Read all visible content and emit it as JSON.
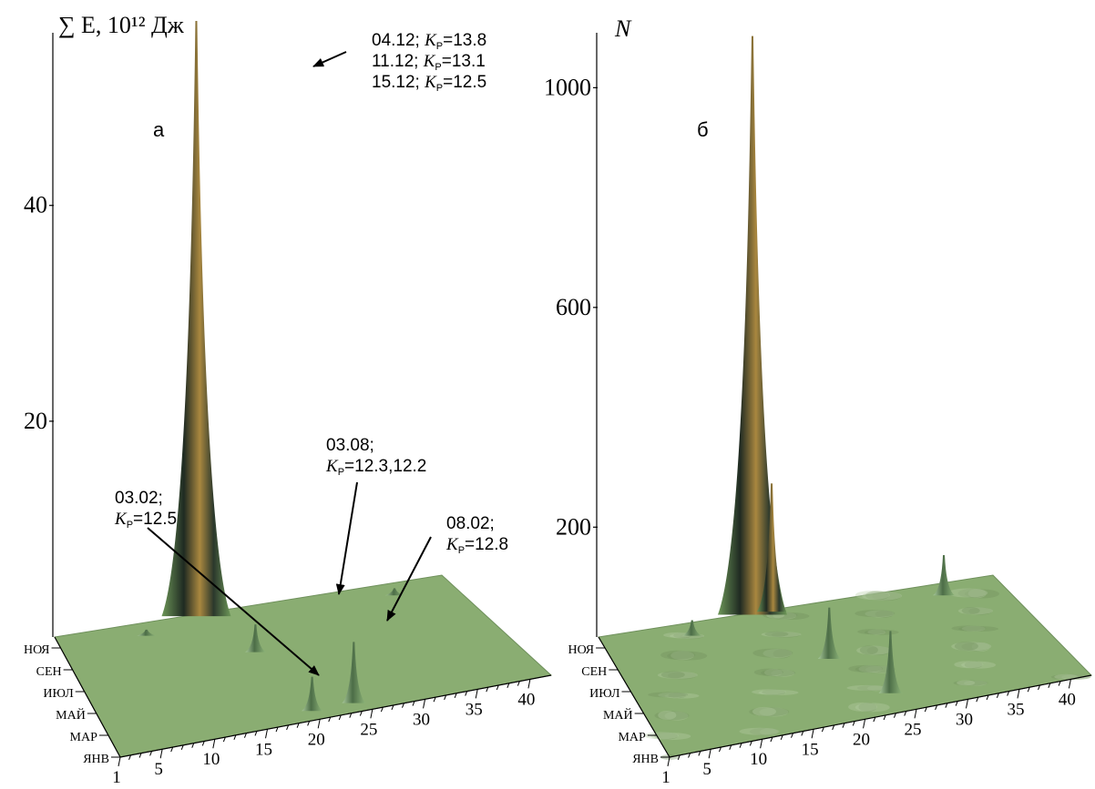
{
  "chart_data": [
    {
      "type": "surface",
      "panel_label": "а",
      "zlabel": "∑ E, 10¹² Дж",
      "zlim": [
        0,
        56
      ],
      "z_ticks": [
        "20",
        "40"
      ],
      "x_ticks": [
        "1",
        "5",
        "10",
        "15",
        "20",
        "25",
        "30",
        "35",
        "40"
      ],
      "y_ticks": [
        "ЯНВ",
        "МАР",
        "МАЙ",
        "ИЮЛ",
        "СЕН",
        "НОЯ"
      ],
      "series": [
        {
          "peaks": [
            {
              "x": 16,
              "month": "ДЕК",
              "z": 55
            },
            {
              "x": 19,
              "month": "АВГ",
              "z": 2.4
            },
            {
              "x": 20,
              "month": "ФЕВ",
              "z": 3
            },
            {
              "x": 24,
              "month": "ФЕВ",
              "z": 5.5
            },
            {
              "x": 10,
              "month": "НОЯ",
              "z": 0.4
            },
            {
              "x": 36,
              "month": "НОЯ",
              "z": 0.5
            }
          ]
        }
      ],
      "annotations": [
        {
          "lines": [
            [
              {
                "t": "04.12; "
              },
              {
                "t": "K",
                "i": true
              },
              {
                "t": "Р",
                "sub": true
              },
              {
                "t": "=13.8"
              }
            ],
            [
              {
                "t": "11.12; "
              },
              {
                "t": "K",
                "i": true
              },
              {
                "t": "Р",
                "sub": true
              },
              {
                "t": "=13.1"
              }
            ],
            [
              {
                "t": "15.12; "
              },
              {
                "t": "K",
                "i": true
              },
              {
                "t": "Р",
                "sub": true
              },
              {
                "t": "=12.5"
              }
            ]
          ]
        },
        {
          "lines": [
            [
              {
                "t": "03.08;"
              }
            ],
            [
              {
                "t": "K",
                "i": true
              },
              {
                "t": "Р",
                "sub": true
              },
              {
                "t": "=12.3,12.2"
              }
            ]
          ]
        },
        {
          "lines": [
            [
              {
                "t": "03.02;"
              }
            ],
            [
              {
                "t": "K",
                "i": true
              },
              {
                "t": "Р",
                "sub": true
              },
              {
                "t": "=12.5"
              }
            ]
          ]
        },
        {
          "lines": [
            [
              {
                "t": "08.02;"
              }
            ],
            [
              {
                "t": "K",
                "i": true
              },
              {
                "t": "Р",
                "sub": true
              },
              {
                "t": "=12.8"
              }
            ]
          ]
        }
      ]
    },
    {
      "type": "surface",
      "panel_label": "б",
      "zlabel": "N",
      "zlim": [
        0,
        1100
      ],
      "z_ticks": [
        "200",
        "600",
        "1000"
      ],
      "x_ticks": [
        "1",
        "5",
        "10",
        "15",
        "20",
        "25",
        "30",
        "35",
        "40"
      ],
      "y_ticks": [
        "ЯНВ",
        "МАР",
        "МАЙ",
        "ИЮЛ",
        "СЕН",
        "НОЯ"
      ],
      "series": [
        {
          "peaks": [
            {
              "x": 17,
              "month": "ДЕК",
              "z": 1050
            },
            {
              "x": 19,
              "month": "ДЕК",
              "z": 230
            },
            {
              "x": 21,
              "month": "ИЮЛ",
              "z": 90
            },
            {
              "x": 24,
              "month": "МАР",
              "z": 110
            },
            {
              "x": 36,
              "month": "НОЯ",
              "z": 70
            },
            {
              "x": 10,
              "month": "НОЯ",
              "z": 25
            }
          ]
        }
      ]
    }
  ],
  "colors": {
    "surface": "#8aad72",
    "surface_edge": "#6f905c",
    "peak_dark": "#1f2a22",
    "peak_gold": "#b08d42",
    "peak_green": "#7ea868"
  }
}
